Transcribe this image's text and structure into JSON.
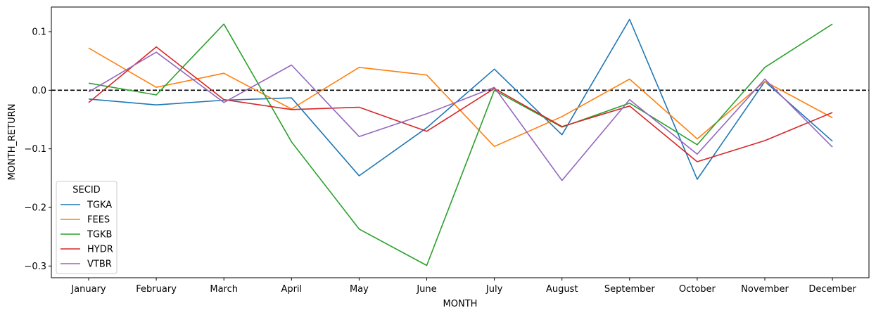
{
  "chart_data": {
    "type": "line",
    "title": "",
    "xlabel": "MONTH",
    "ylabel": "MONTH_RETURN",
    "categories": [
      "January",
      "February",
      "March",
      "April",
      "May",
      "June",
      "July",
      "August",
      "September",
      "October",
      "November",
      "December"
    ],
    "ylim": [
      -0.32,
      0.142
    ],
    "yticks": [
      {
        "value": 0.1,
        "label": "0.1"
      },
      {
        "value": 0.0,
        "label": "0.0"
      },
      {
        "value": -0.1,
        "label": "−0.1"
      },
      {
        "value": -0.2,
        "label": "−0.2"
      },
      {
        "value": -0.3,
        "label": "−0.3"
      }
    ],
    "reference_line": {
      "y": 0,
      "style": "dashed",
      "color": "#000000"
    },
    "grid": false,
    "legend": {
      "title": "SECID",
      "placement": "lower-left"
    },
    "series": [
      {
        "name": "TGKA",
        "color": "#1f77b4",
        "values": [
          -0.015,
          -0.025,
          -0.017,
          -0.013,
          -0.146,
          -0.064,
          0.036,
          -0.076,
          0.121,
          -0.152,
          0.015,
          -0.087
        ]
      },
      {
        "name": "FEES",
        "color": "#ff7f0e",
        "values": [
          0.072,
          0.005,
          0.029,
          -0.032,
          0.039,
          0.026,
          -0.096,
          -0.045,
          0.019,
          -0.083,
          0.015,
          -0.047
        ]
      },
      {
        "name": "TGKB",
        "color": "#2ca02c",
        "values": [
          0.012,
          -0.008,
          0.113,
          -0.088,
          -0.237,
          -0.299,
          0.0,
          -0.063,
          -0.022,
          -0.093,
          0.039,
          0.113
        ]
      },
      {
        "name": "HYDR",
        "color": "#d62728",
        "values": [
          -0.021,
          0.074,
          -0.016,
          -0.033,
          -0.029,
          -0.07,
          0.003,
          -0.062,
          -0.027,
          -0.122,
          -0.086,
          -0.038
        ]
      },
      {
        "name": "VTBR",
        "color": "#9467bd",
        "values": [
          -0.003,
          0.065,
          -0.021,
          0.043,
          -0.079,
          -0.04,
          0.005,
          -0.154,
          -0.016,
          -0.109,
          0.019,
          -0.097
        ]
      }
    ]
  }
}
